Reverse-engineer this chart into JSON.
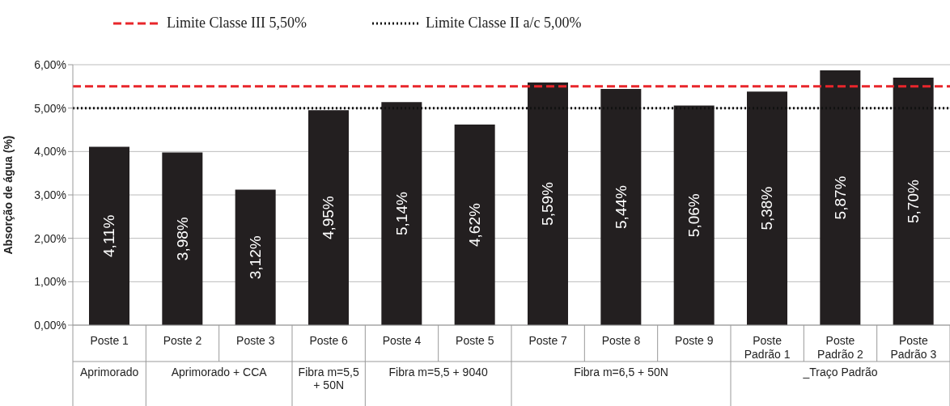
{
  "chart_data": {
    "type": "bar",
    "ylabel": "Absorção de água (%)",
    "categories": [
      "Poste 1",
      "Poste 2",
      "Poste 3",
      "Poste 6",
      "Poste 4",
      "Poste 5",
      "Poste 7",
      "Poste 8",
      "Poste 9",
      "Poste Padrão 1",
      "Poste Padrão 2",
      "Poste Padrão 3"
    ],
    "values": [
      4.11,
      3.98,
      3.12,
      4.95,
      5.14,
      4.62,
      5.59,
      5.44,
      5.06,
      5.38,
      5.87,
      5.7
    ],
    "value_labels": [
      "4,11%",
      "3,98%",
      "3,12%",
      "4,95%",
      "5,14%",
      "4,62%",
      "5,59%",
      "5,44%",
      "5,06%",
      "5,38%",
      "5,87%",
      "5,70%"
    ],
    "color": "#231f20",
    "ylim": [
      0,
      6
    ],
    "yticks": [
      {
        "value": 0,
        "label": "0,00%"
      },
      {
        "value": 1,
        "label": "1,00%"
      },
      {
        "value": 2,
        "label": "2,00%"
      },
      {
        "value": 3,
        "label": "3,00%"
      },
      {
        "value": 4,
        "label": "4,00%"
      },
      {
        "value": 5,
        "label": "5,00%"
      },
      {
        "value": 6,
        "label": "6,00%"
      }
    ],
    "grid": "y",
    "legend": "top",
    "ref_lines": [
      {
        "axis": "y",
        "value": 5.5,
        "label": "Limite Classe III 5,50%",
        "color": "#e8262b",
        "line_style": "dashed"
      },
      {
        "axis": "y",
        "value": 5.0,
        "label": "Limite Classe II a/c 5,00%",
        "color": "#111111",
        "line_style": "dotted"
      }
    ],
    "annotations": [
      "Aprimorado",
      "Aprimorado + CCA",
      "Fibra m=5,5 + 50N",
      "Fibra m=5,5 + 9040",
      "Fibra m=6,5 + 50N",
      "_Traço Padrão"
    ]
  }
}
